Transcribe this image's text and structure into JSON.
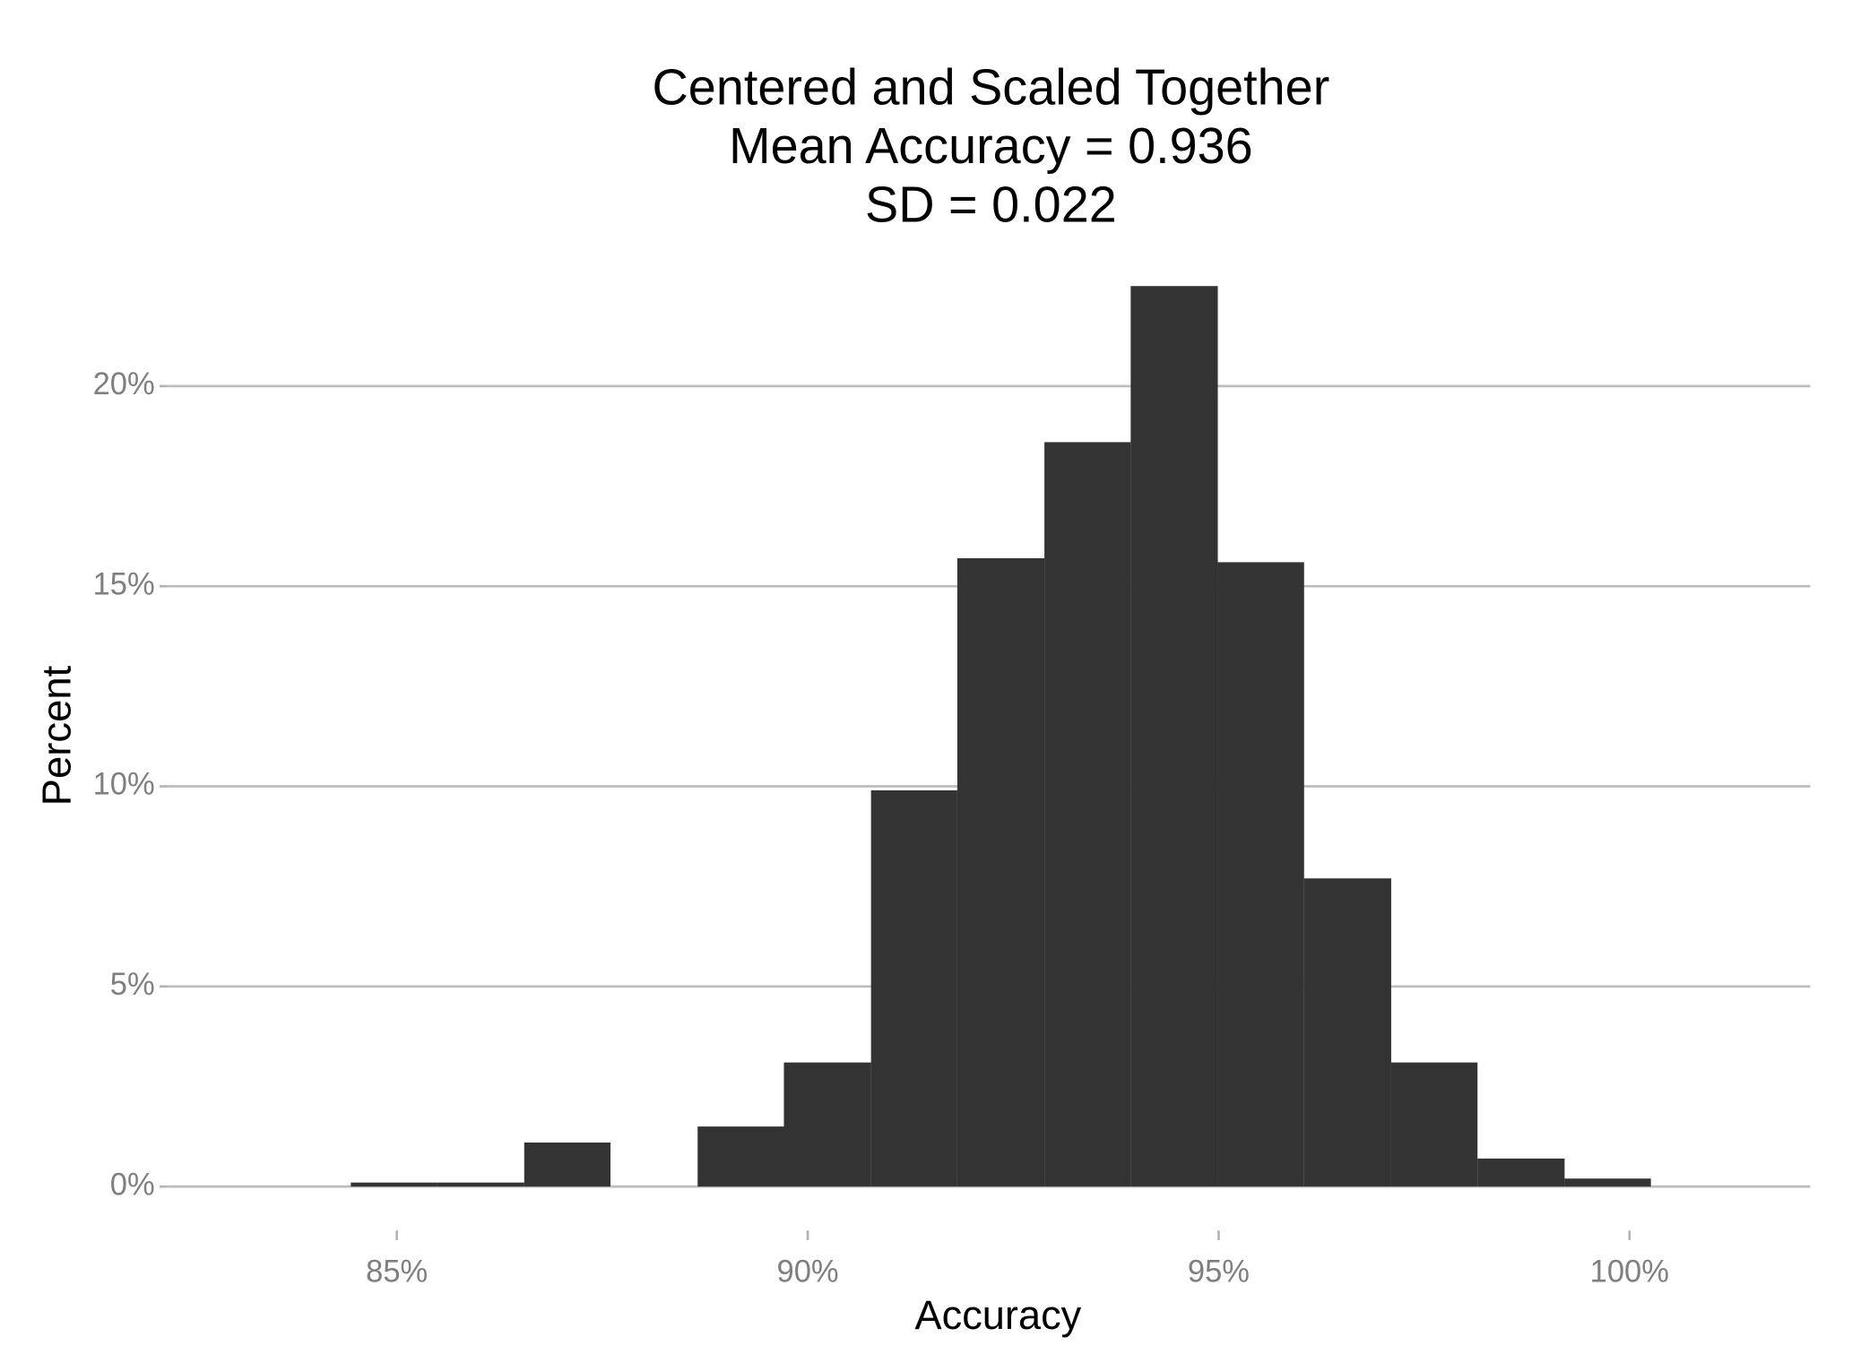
{
  "chart_data": {
    "type": "histogram",
    "title": "Centered and Scaled Together",
    "subtitle": [
      "Mean Accuracy = 0.936",
      "SD = 0.022"
    ],
    "x_label": "Accuracy",
    "y_label": "Percent",
    "bins": [
      84.44,
      85.49,
      86.55,
      87.6,
      88.66,
      89.71,
      90.77,
      91.82,
      92.88,
      93.93,
      94.99,
      96.04,
      97.1,
      98.15,
      99.21,
      100.26
    ],
    "values": [
      0.1,
      0.1,
      1.1,
      0,
      1.5,
      3.1,
      9.9,
      15.7,
      18.6,
      22.5,
      15.6,
      7.7,
      3.1,
      0.7,
      0.2
    ],
    "color": "#333333",
    "xlim": [
      82.2,
      102.2
    ],
    "ylim": [
      -1.1,
      23.6
    ],
    "xticks": [
      {
        "value": 85,
        "label": "85%"
      },
      {
        "value": 90,
        "label": "90%"
      },
      {
        "value": 95,
        "label": "95%"
      },
      {
        "value": 100,
        "label": "100%"
      }
    ],
    "yticks": [
      {
        "value": 0,
        "label": "0%"
      },
      {
        "value": 5,
        "label": "5%"
      },
      {
        "value": 10,
        "label": "10%"
      },
      {
        "value": 15,
        "label": "15%"
      },
      {
        "value": 20,
        "label": "20%"
      }
    ],
    "grid": true
  }
}
